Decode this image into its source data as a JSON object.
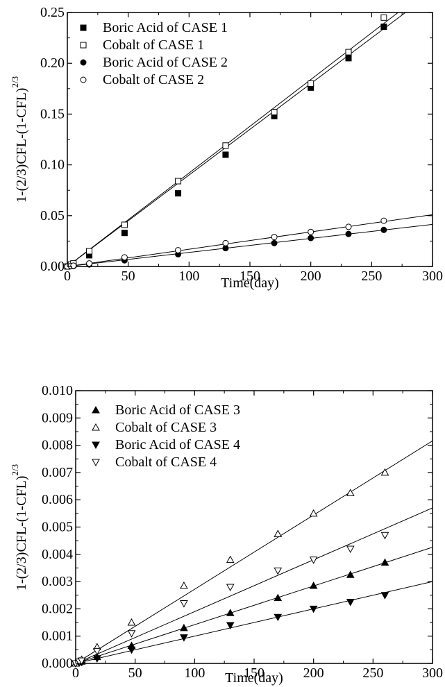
{
  "chart_data": [
    {
      "type": "scatter",
      "xlabel": "Time(day)",
      "ylabel_main": "1-(2/3)CFL-(1-CFL)",
      "ylabel_sup": "2/3",
      "xlim": [
        0,
        300
      ],
      "ylim": [
        0,
        0.25
      ],
      "xticks": [
        "0",
        "50",
        "100",
        "150",
        "200",
        "250",
        "300"
      ],
      "yticks": [
        "0.00",
        "0.05",
        "0.10",
        "0.15",
        "0.20",
        "0.25"
      ],
      "grid": false,
      "legend_position": "top-left",
      "series": [
        {
          "name": "Boric Acid of CASE 1",
          "marker": "square-filled",
          "fit_slope": 0.0009,
          "points": [
            [
              0,
              0.0
            ],
            [
              3,
              0.001
            ],
            [
              5,
              0.002
            ],
            [
              18,
              0.011
            ],
            [
              47,
              0.033
            ],
            [
              91,
              0.072
            ],
            [
              130,
              0.11
            ],
            [
              170,
              0.148
            ],
            [
              200,
              0.176
            ],
            [
              231,
              0.205
            ],
            [
              260,
              0.236
            ]
          ]
        },
        {
          "name": "Cobalt of CASE 1",
          "marker": "square-open",
          "fit_slope": 0.00092,
          "points": [
            [
              0,
              0.0
            ],
            [
              3,
              0.002
            ],
            [
              5,
              0.003
            ],
            [
              18,
              0.015
            ],
            [
              47,
              0.041
            ],
            [
              91,
              0.084
            ],
            [
              130,
              0.119
            ],
            [
              170,
              0.152
            ],
            [
              200,
              0.18
            ],
            [
              231,
              0.211
            ],
            [
              260,
              0.245
            ]
          ]
        },
        {
          "name": "Boric Acid of CASE 2",
          "marker": "circle-filled",
          "fit_slope": 0.000138,
          "points": [
            [
              0,
              0.0
            ],
            [
              3,
              0.0003
            ],
            [
              5,
              0.0005
            ],
            [
              18,
              0.002
            ],
            [
              47,
              0.006
            ],
            [
              91,
              0.012
            ],
            [
              130,
              0.018
            ],
            [
              170,
              0.023
            ],
            [
              200,
              0.028
            ],
            [
              231,
              0.032
            ],
            [
              260,
              0.036
            ]
          ]
        },
        {
          "name": "Cobalt of CASE 2",
          "marker": "circle-open",
          "fit_slope": 0.00017,
          "points": [
            [
              0,
              0.0
            ],
            [
              3,
              0.0005
            ],
            [
              5,
              0.0008
            ],
            [
              18,
              0.003
            ],
            [
              47,
              0.009
            ],
            [
              91,
              0.016
            ],
            [
              130,
              0.023
            ],
            [
              170,
              0.029
            ],
            [
              200,
              0.034
            ],
            [
              231,
              0.039
            ],
            [
              260,
              0.045
            ]
          ]
        }
      ]
    },
    {
      "type": "scatter",
      "xlabel": "Time(day)",
      "ylabel_main": "1-(2/3)CFL-(1-CFL)",
      "ylabel_sup": "2/3",
      "xlim": [
        0,
        300
      ],
      "ylim": [
        0,
        0.01
      ],
      "xticks": [
        "0",
        "50",
        "100",
        "150",
        "200",
        "250",
        "300"
      ],
      "yticks": [
        "0.000",
        "0.001",
        "0.002",
        "0.003",
        "0.004",
        "0.005",
        "0.006",
        "0.007",
        "0.008",
        "0.009",
        "0.010"
      ],
      "grid": false,
      "legend_position": "top-left",
      "series": [
        {
          "name": "Boric Acid of CASE 3",
          "marker": "triangle-up-filled",
          "fit_slope": 1.42e-05,
          "points": [
            [
              0,
              0.0
            ],
            [
              3,
              4e-05
            ],
            [
              5,
              7e-05
            ],
            [
              18,
              0.00024
            ],
            [
              47,
              0.00065
            ],
            [
              91,
              0.0013
            ],
            [
              130,
              0.00185
            ],
            [
              170,
              0.0024
            ],
            [
              200,
              0.00285
            ],
            [
              231,
              0.00325
            ],
            [
              260,
              0.0037
            ]
          ]
        },
        {
          "name": "Cobalt of CASE 3",
          "marker": "triangle-up-open",
          "fit_slope": 2.72e-05,
          "points": [
            [
              0,
              0.0
            ],
            [
              3,
              8e-05
            ],
            [
              5,
              0.00014
            ],
            [
              18,
              0.0006
            ],
            [
              47,
              0.0015
            ],
            [
              91,
              0.00285
            ],
            [
              130,
              0.0038
            ],
            [
              170,
              0.00475
            ],
            [
              200,
              0.0055
            ],
            [
              231,
              0.00625
            ],
            [
              260,
              0.007
            ]
          ]
        },
        {
          "name": "Boric Acid of CASE 4",
          "marker": "triangle-down-filled",
          "fit_slope": 1e-05,
          "points": [
            [
              0,
              0.0
            ],
            [
              3,
              3e-05
            ],
            [
              5,
              5e-05
            ],
            [
              18,
              0.00018
            ],
            [
              47,
              0.0005
            ],
            [
              91,
              0.00095
            ],
            [
              130,
              0.0014
            ],
            [
              170,
              0.0017
            ],
            [
              200,
              0.002
            ],
            [
              231,
              0.00225
            ],
            [
              260,
              0.0025
            ]
          ]
        },
        {
          "name": "Cobalt of CASE 4",
          "marker": "triangle-down-open",
          "fit_slope": 1.9e-05,
          "points": [
            [
              0,
              0.0
            ],
            [
              3,
              6e-05
            ],
            [
              5,
              0.0001
            ],
            [
              18,
              0.00045
            ],
            [
              47,
              0.0011
            ],
            [
              91,
              0.0022
            ],
            [
              130,
              0.0028
            ],
            [
              170,
              0.0034
            ],
            [
              200,
              0.0038
            ],
            [
              231,
              0.0042
            ],
            [
              260,
              0.0047
            ]
          ]
        }
      ]
    }
  ]
}
